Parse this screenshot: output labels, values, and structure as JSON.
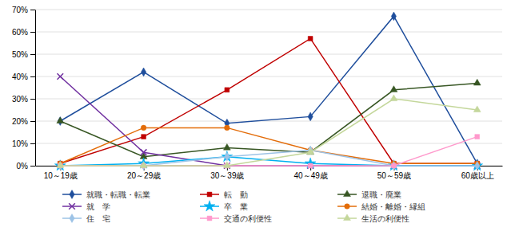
{
  "chart_data": {
    "type": "line",
    "categories": [
      "10～19歳",
      "20～29歳",
      "30～39歳",
      "40～49歳",
      "50～59歳",
      "60歳以上"
    ],
    "series": [
      {
        "name": "就職・転職・転業",
        "color": "#1F4E9C",
        "marker": "diamond",
        "values": [
          20,
          42,
          19,
          22,
          67,
          1
        ]
      },
      {
        "name": "転　動",
        "color": "#C00000",
        "marker": "square",
        "values": [
          1,
          13,
          34,
          57,
          1,
          1
        ]
      },
      {
        "name": "退職・廃業",
        "color": "#375623",
        "marker": "triangle",
        "values": [
          20,
          4,
          8,
          6,
          34,
          37
        ]
      },
      {
        "name": "就　学",
        "color": "#7030A0",
        "marker": "x",
        "values": [
          40,
          6,
          0,
          0,
          0,
          0
        ]
      },
      {
        "name": "卒　業",
        "color": "#00B0F0",
        "marker": "star",
        "values": [
          0,
          1,
          4,
          1,
          0,
          0
        ]
      },
      {
        "name": "結婚・離婚・縁組",
        "color": "#E36C09",
        "marker": "circle",
        "values": [
          1,
          17,
          17,
          7,
          1,
          1
        ]
      },
      {
        "name": "住　宅",
        "color": "#9DC3E6",
        "marker": "diamond",
        "values": [
          0,
          0,
          4,
          7,
          0,
          0
        ]
      },
      {
        "name": "交通の利便性",
        "color": "#FF99CC",
        "marker": "square",
        "values": [
          0,
          0,
          0,
          0,
          0,
          13
        ]
      },
      {
        "name": "生活の利便性",
        "color": "#C4D79B",
        "marker": "triangle",
        "values": [
          0,
          0,
          0,
          6,
          30,
          25
        ]
      }
    ],
    "ylim": [
      0,
      70
    ],
    "yticks": [
      {
        "value": 0,
        "label": "0%"
      },
      {
        "value": 10,
        "label": "10%"
      },
      {
        "value": 20,
        "label": "20%"
      },
      {
        "value": 30,
        "label": "30%"
      },
      {
        "value": 40,
        "label": "40%"
      },
      {
        "value": 50,
        "label": "50%"
      },
      {
        "value": 60,
        "label": "60%"
      },
      {
        "value": 70,
        "label": "70%"
      }
    ],
    "grid": true,
    "legend": "bottom"
  }
}
